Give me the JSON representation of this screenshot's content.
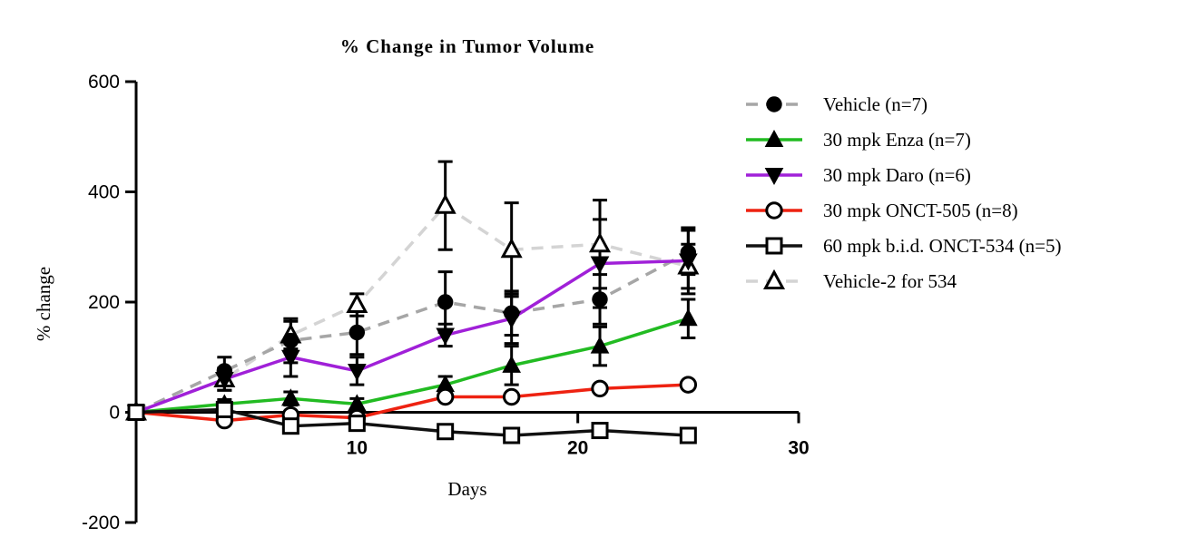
{
  "chart_data": {
    "type": "line",
    "title": "% Change in  Tumor Volume",
    "xlabel": "Days",
    "ylabel": "% change",
    "xlim": [
      0,
      30
    ],
    "ylim": [
      -200,
      600
    ],
    "xticks": [
      10,
      20,
      30
    ],
    "yticks": [
      -200,
      0,
      200,
      400,
      600
    ],
    "xtick_labels": [
      "10",
      "20",
      "30"
    ],
    "ytick_labels": [
      "-200",
      "0",
      "200",
      "400",
      "600"
    ],
    "legend_position": "right",
    "series": [
      {
        "name": "Vehicle (n=7)",
        "color": "#a6a6a6",
        "dash": "dashed",
        "marker": "circle-filled",
        "x": [
          0,
          4,
          7,
          10,
          14,
          17,
          21,
          25
        ],
        "y": [
          0,
          75,
          130,
          145,
          200,
          180,
          205,
          290
        ],
        "err": [
          0,
          25,
          40,
          40,
          55,
          40,
          45,
          40
        ]
      },
      {
        "name": "30 mpk Enza (n=7)",
        "color": "#22bb22",
        "dash": "solid",
        "marker": "triangle-up-filled",
        "x": [
          0,
          4,
          7,
          10,
          14,
          17,
          21,
          25
        ],
        "y": [
          0,
          15,
          25,
          15,
          50,
          85,
          120,
          170
        ],
        "err": [
          0,
          8,
          12,
          10,
          15,
          35,
          35,
          35
        ]
      },
      {
        "name": "30 mpk Daro (n=6)",
        "color": "#a020d8",
        "dash": "solid",
        "marker": "triangle-down-filled",
        "x": [
          0,
          4,
          7,
          10,
          14,
          17,
          21,
          25
        ],
        "y": [
          0,
          60,
          100,
          75,
          140,
          170,
          270,
          275
        ],
        "err": [
          0,
          20,
          35,
          25,
          20,
          45,
          80,
          60
        ]
      },
      {
        "name": "30 mpk ONCT-505 (n=8)",
        "color": "#ee2211",
        "dash": "solid",
        "marker": "circle-open",
        "x": [
          0,
          4,
          7,
          10,
          14,
          17,
          21,
          25
        ],
        "y": [
          0,
          -15,
          -5,
          -10,
          28,
          28,
          43,
          50
        ],
        "err": [
          0,
          5,
          5,
          5,
          5,
          5,
          5,
          5
        ]
      },
      {
        "name": "60 mpk b.i.d. ONCT-534 (n=5)",
        "color": "#111111",
        "dash": "solid",
        "marker": "square-open",
        "x": [
          0,
          4,
          7,
          10,
          14,
          17,
          21,
          25
        ],
        "y": [
          0,
          5,
          -25,
          -20,
          -35,
          -42,
          -33,
          -42
        ],
        "err": [
          0,
          5,
          5,
          5,
          5,
          5,
          5,
          5
        ]
      },
      {
        "name": "Vehicle-2 for 534",
        "color": "#d4d4d4",
        "dash": "dashed",
        "marker": "triangle-up-open",
        "x": [
          0,
          4,
          7,
          10,
          14,
          17,
          21,
          25
        ],
        "y": [
          0,
          60,
          140,
          195,
          375,
          295,
          305,
          265
        ],
        "err": [
          0,
          20,
          25,
          20,
          80,
          85,
          80,
          40
        ]
      }
    ]
  }
}
